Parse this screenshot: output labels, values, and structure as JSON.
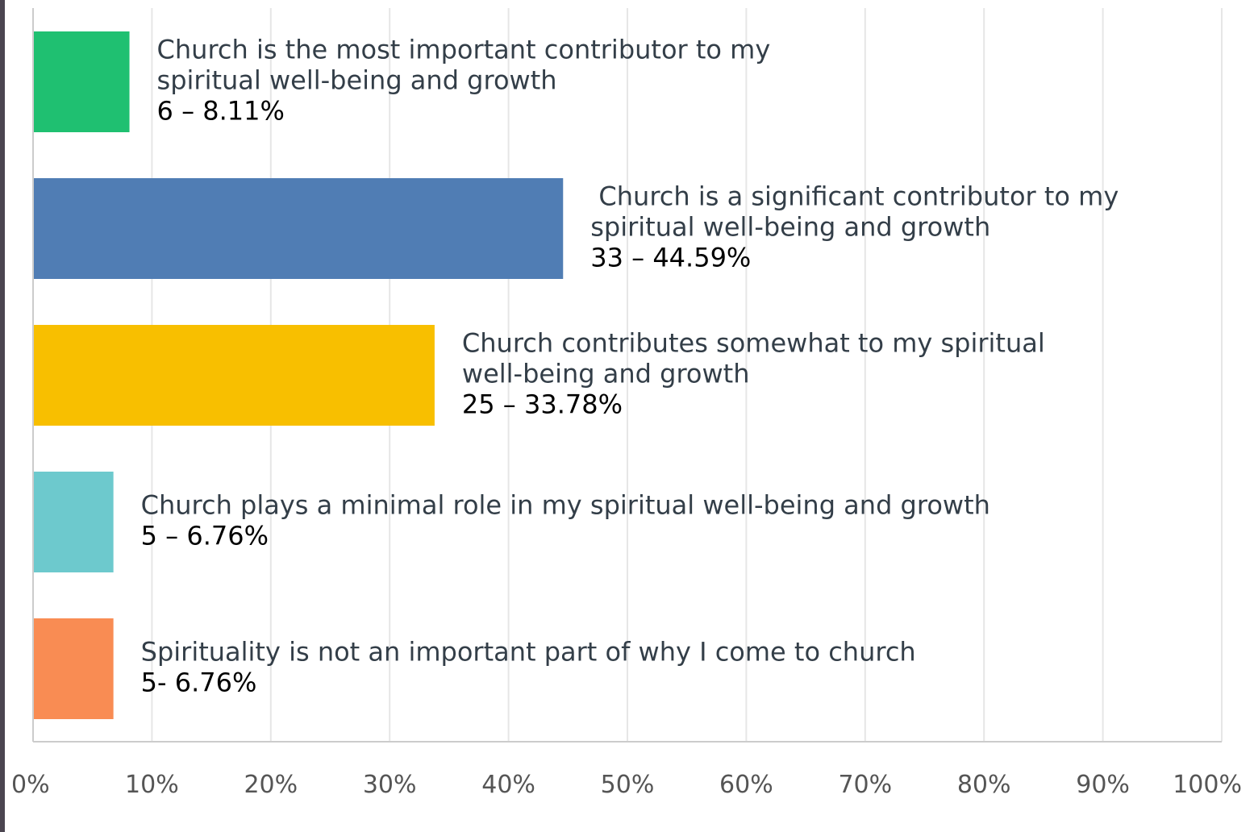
{
  "chart_data": {
    "type": "bar",
    "orientation": "horizontal",
    "categories": [
      [
        "Church is the most important contributor to my",
        "spiritual well-being and growth"
      ],
      [
        " Church is a significant contributor to my",
        "spiritual well-being and growth"
      ],
      [
        "Church contributes somewhat to my spiritual",
        "well-being and growth"
      ],
      [
        "Church plays a minimal role in my spiritual well-being and growth"
      ],
      [
        "Spirituality is not an important part of why I come to church"
      ]
    ],
    "values": [
      8.11,
      44.59,
      33.78,
      6.76,
      6.76
    ],
    "data_labels": [
      "6 – 8.11%",
      "33 – 44.59%",
      "25 – 33.78%",
      "5 – 6.76%",
      "5- 6.76%"
    ],
    "colors": [
      "#1fc071",
      "#507db4",
      "#f8bf00",
      "#6dc9cd",
      "#f98c53"
    ],
    "xlim": [
      0,
      100
    ],
    "x_ticks": [
      "0%",
      "10%",
      "20%",
      "30%",
      "40%",
      "50%",
      "60%",
      "70%",
      "80%",
      "90%",
      "100%"
    ],
    "grid": true,
    "title": "",
    "xlabel": "",
    "ylabel": ""
  }
}
